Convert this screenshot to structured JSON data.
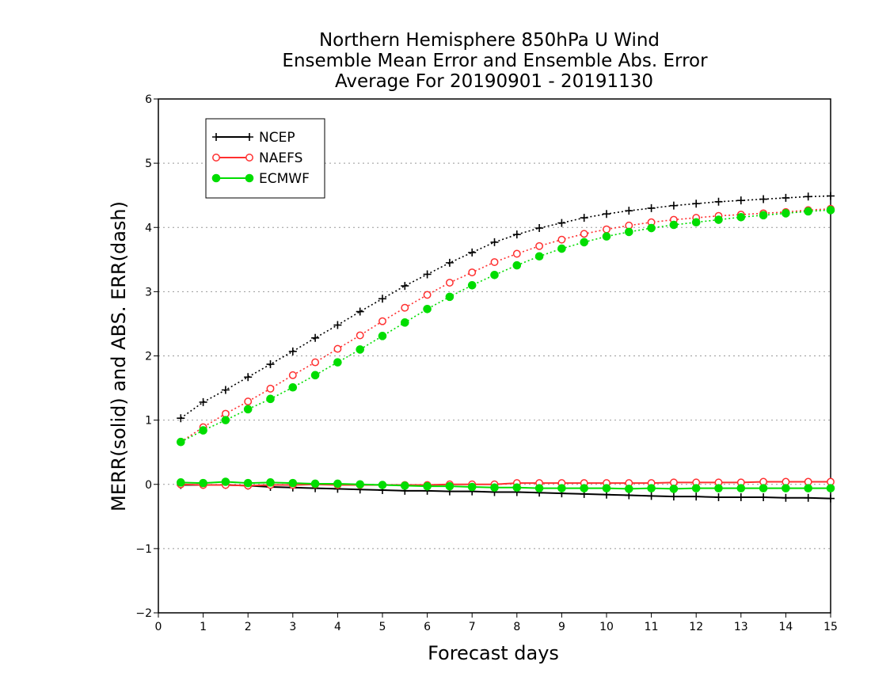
{
  "chart_data": {
    "type": "line",
    "title_lines": [
      "Northern Hemisphere 850hPa U Wind",
      "Ensemble Mean Error and Ensemble Abs. Error",
      "Average For 20190901 - 20191130"
    ],
    "xlabel": "Forecast days",
    "ylabel": "MERR(solid) and ABS. ERR(dash)",
    "xlim": [
      0,
      15
    ],
    "ylim": [
      -2,
      6
    ],
    "xticks": [
      "0",
      "1",
      "2",
      "3",
      "4",
      "5",
      "6",
      "7",
      "8",
      "9",
      "10",
      "11",
      "12",
      "13",
      "14",
      "15"
    ],
    "yticks": [
      "-2",
      "-1",
      "0",
      "1",
      "2",
      "3",
      "4",
      "5",
      "6"
    ],
    "grid": "horizontal dotted",
    "legend_position": "top-left",
    "x": [
      0.5,
      1,
      1.5,
      2,
      2.5,
      3,
      3.5,
      4,
      4.5,
      5,
      5.5,
      6,
      6.5,
      7,
      7.5,
      8,
      8.5,
      9,
      9.5,
      10,
      10.5,
      11,
      11.5,
      12,
      12.5,
      13,
      13.5,
      14,
      14.5,
      15
    ],
    "series": [
      {
        "name": "NCEP",
        "color": "#000000",
        "marker": "plus",
        "abs_err": [
          1.03,
          1.28,
          1.47,
          1.67,
          1.87,
          2.07,
          2.28,
          2.48,
          2.69,
          2.89,
          3.09,
          3.27,
          3.45,
          3.61,
          3.77,
          3.89,
          3.99,
          4.07,
          4.15,
          4.21,
          4.26,
          4.3,
          4.34,
          4.37,
          4.4,
          4.42,
          4.44,
          4.46,
          4.48,
          4.49
        ],
        "mean_err": [
          -0.01,
          -0.01,
          -0.01,
          -0.02,
          -0.04,
          -0.05,
          -0.06,
          -0.07,
          -0.08,
          -0.09,
          -0.1,
          -0.1,
          -0.11,
          -0.11,
          -0.12,
          -0.12,
          -0.13,
          -0.14,
          -0.15,
          -0.16,
          -0.17,
          -0.18,
          -0.19,
          -0.19,
          -0.2,
          -0.2,
          -0.2,
          -0.21,
          -0.21,
          -0.22
        ]
      },
      {
        "name": "NAEFS",
        "color": "#ff3030",
        "marker": "open-circle",
        "abs_err": [
          0.66,
          0.89,
          1.1,
          1.29,
          1.49,
          1.7,
          1.9,
          2.11,
          2.32,
          2.54,
          2.75,
          2.95,
          3.14,
          3.3,
          3.46,
          3.59,
          3.71,
          3.81,
          3.9,
          3.97,
          4.03,
          4.08,
          4.12,
          4.15,
          4.18,
          4.2,
          4.22,
          4.24,
          4.27,
          4.29
        ],
        "mean_err": [
          0.0,
          -0.01,
          -0.01,
          -0.02,
          -0.01,
          -0.01,
          0.0,
          -0.01,
          -0.01,
          -0.01,
          -0.01,
          -0.01,
          0.0,
          0.0,
          0.0,
          0.02,
          0.02,
          0.02,
          0.02,
          0.02,
          0.02,
          0.02,
          0.03,
          0.03,
          0.03,
          0.03,
          0.04,
          0.04,
          0.04,
          0.04
        ]
      },
      {
        "name": "ECMWF",
        "color": "#00dd00",
        "marker": "filled-circle",
        "abs_err": [
          0.66,
          0.84,
          1.0,
          1.17,
          1.33,
          1.51,
          1.7,
          1.9,
          2.1,
          2.31,
          2.52,
          2.73,
          2.92,
          3.1,
          3.26,
          3.41,
          3.55,
          3.67,
          3.77,
          3.86,
          3.93,
          3.99,
          4.04,
          4.08,
          4.12,
          4.16,
          4.19,
          4.22,
          4.25,
          4.27
        ],
        "mean_err": [
          0.03,
          0.02,
          0.04,
          0.02,
          0.03,
          0.02,
          0.01,
          0.01,
          0.0,
          -0.01,
          -0.02,
          -0.03,
          -0.03,
          -0.04,
          -0.05,
          -0.05,
          -0.06,
          -0.06,
          -0.06,
          -0.06,
          -0.07,
          -0.06,
          -0.07,
          -0.06,
          -0.06,
          -0.06,
          -0.06,
          -0.06,
          -0.06,
          -0.06
        ]
      }
    ]
  }
}
